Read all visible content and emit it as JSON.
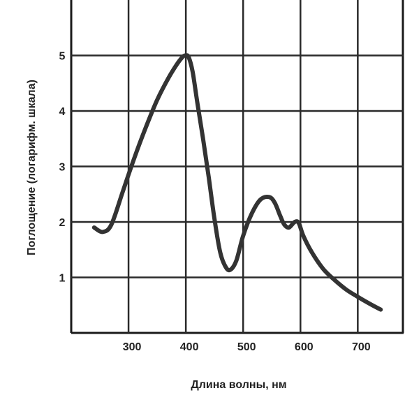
{
  "chart_data": {
    "type": "line",
    "xlabel": "Длина волны, нм",
    "ylabel": "Поглощение (логарифм. шкала)",
    "xlim": [
      200,
      780
    ],
    "ylim": [
      0,
      6
    ],
    "grid": true,
    "x_ticks": [
      300,
      400,
      500,
      600,
      700
    ],
    "y_ticks": [
      1,
      2,
      3,
      4,
      5
    ],
    "series": [
      {
        "x": [
          240,
          255,
          270,
          290,
          310,
          330,
          350,
          370,
          385,
          395,
          400,
          405,
          412,
          420,
          430,
          440,
          450,
          460,
          470,
          478,
          488,
          500,
          515,
          530,
          545,
          555,
          565,
          572,
          580,
          590,
          597,
          605,
          620,
          640,
          660,
          680,
          700,
          720,
          740
        ],
        "y": [
          1.9,
          1.82,
          1.95,
          2.55,
          3.15,
          3.7,
          4.2,
          4.6,
          4.85,
          4.98,
          5.0,
          4.97,
          4.7,
          4.15,
          3.5,
          2.8,
          2.05,
          1.45,
          1.18,
          1.14,
          1.3,
          1.75,
          2.15,
          2.4,
          2.45,
          2.35,
          2.1,
          1.95,
          1.9,
          2.0,
          1.98,
          1.75,
          1.45,
          1.15,
          0.95,
          0.78,
          0.65,
          0.53,
          0.42
        ]
      }
    ]
  },
  "colors": {
    "curve": "#333333",
    "grid": "#2a2a2a",
    "background": "#ffffff"
  }
}
